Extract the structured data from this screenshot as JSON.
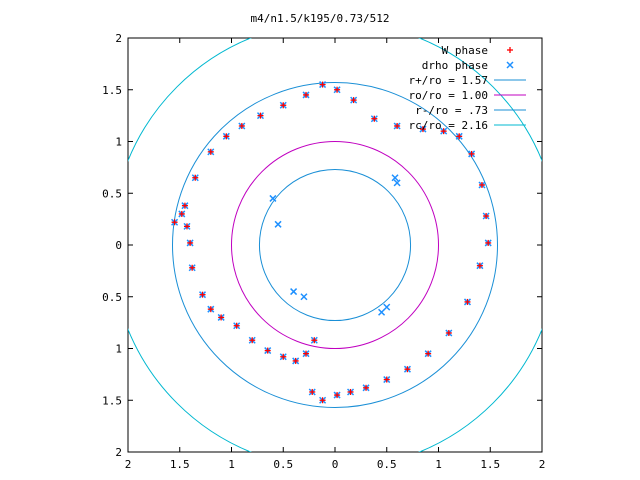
{
  "chart_data": {
    "type": "scatter",
    "title": "m4/n1.5/k195/0.73/512",
    "xlim": [
      -2,
      2
    ],
    "ylim": [
      -2,
      2
    ],
    "x_ticks": [
      -2,
      -1.5,
      -1,
      -0.5,
      0,
      0.5,
      1,
      1.5,
      2
    ],
    "y_ticks": [
      -2,
      -1.5,
      -1,
      -0.5,
      0,
      0.5,
      1,
      1.5,
      2
    ],
    "x_tick_labels": [
      "2",
      "1.5",
      "1",
      "0.5",
      "0",
      "0.5",
      "1",
      "1.5",
      "2"
    ],
    "y_tick_labels": [
      "2",
      "1.5",
      "1",
      "0.5",
      "0",
      "0.5",
      "1",
      "1.5",
      "2"
    ],
    "grid": false,
    "legend_position": "top-right",
    "colors": {
      "w_phase": "#ff0000",
      "drho_phase": "#1e90ff",
      "r_plus": "#1a8fd6",
      "r_o": "#c000c0",
      "r_minus": "#1a8fd6",
      "r_c": "#00b8d0",
      "extra_red": "#cc0033",
      "extra_purple": "#993399"
    },
    "series": [
      {
        "name": "W phase",
        "marker": "plus",
        "points": [
          [
            -1.55,
            0.22
          ],
          [
            -1.45,
            0.38
          ],
          [
            -1.43,
            0.18
          ],
          [
            -1.4,
            0.02
          ],
          [
            -1.38,
            -0.22
          ],
          [
            -1.28,
            -0.48
          ],
          [
            -1.2,
            -0.62
          ],
          [
            -1.1,
            -0.7
          ],
          [
            -0.95,
            -0.78
          ],
          [
            -0.8,
            -0.92
          ],
          [
            -0.65,
            -1.02
          ],
          [
            -0.5,
            -1.08
          ],
          [
            -0.38,
            -1.12
          ],
          [
            -0.28,
            -1.05
          ],
          [
            -0.2,
            -0.92
          ],
          [
            -0.22,
            -1.42
          ],
          [
            -0.12,
            -1.5
          ],
          [
            0.02,
            -1.45
          ],
          [
            0.15,
            -1.42
          ],
          [
            0.3,
            -1.38
          ],
          [
            0.5,
            -1.3
          ],
          [
            0.7,
            -1.2
          ],
          [
            0.9,
            -1.05
          ],
          [
            1.1,
            -0.85
          ],
          [
            1.28,
            -0.55
          ],
          [
            1.4,
            -0.2
          ],
          [
            1.48,
            0.02
          ],
          [
            1.46,
            0.28
          ],
          [
            1.42,
            0.58
          ],
          [
            1.32,
            0.88
          ],
          [
            1.2,
            1.05
          ],
          [
            1.05,
            1.1
          ],
          [
            0.85,
            1.12
          ],
          [
            0.6,
            1.15
          ],
          [
            0.38,
            1.22
          ],
          [
            0.18,
            1.4
          ],
          [
            0.02,
            1.5
          ],
          [
            -0.12,
            1.55
          ],
          [
            -0.28,
            1.45
          ],
          [
            -0.5,
            1.35
          ],
          [
            -0.72,
            1.25
          ],
          [
            -0.9,
            1.15
          ],
          [
            -1.05,
            1.05
          ],
          [
            -1.2,
            0.9
          ],
          [
            -1.35,
            0.65
          ],
          [
            -1.48,
            0.3
          ]
        ]
      },
      {
        "name": "drho phase",
        "marker": "cross",
        "points": [
          [
            -1.55,
            0.22
          ],
          [
            -1.45,
            0.38
          ],
          [
            -1.43,
            0.18
          ],
          [
            -1.4,
            0.02
          ],
          [
            -1.38,
            -0.22
          ],
          [
            -1.28,
            -0.48
          ],
          [
            -1.2,
            -0.62
          ],
          [
            -1.1,
            -0.7
          ],
          [
            -0.95,
            -0.78
          ],
          [
            -0.8,
            -0.92
          ],
          [
            -0.65,
            -1.02
          ],
          [
            -0.5,
            -1.08
          ],
          [
            -0.38,
            -1.12
          ],
          [
            -0.28,
            -1.05
          ],
          [
            -0.2,
            -0.92
          ],
          [
            -0.22,
            -1.42
          ],
          [
            -0.12,
            -1.5
          ],
          [
            0.02,
            -1.45
          ],
          [
            0.15,
            -1.42
          ],
          [
            0.3,
            -1.38
          ],
          [
            0.5,
            -1.3
          ],
          [
            0.7,
            -1.2
          ],
          [
            0.9,
            -1.05
          ],
          [
            1.1,
            -0.85
          ],
          [
            1.28,
            -0.55
          ],
          [
            1.4,
            -0.2
          ],
          [
            1.48,
            0.02
          ],
          [
            1.46,
            0.28
          ],
          [
            1.42,
            0.58
          ],
          [
            1.32,
            0.88
          ],
          [
            1.2,
            1.05
          ],
          [
            1.05,
            1.1
          ],
          [
            0.85,
            1.12
          ],
          [
            0.6,
            1.15
          ],
          [
            0.38,
            1.22
          ],
          [
            0.18,
            1.4
          ],
          [
            0.02,
            1.5
          ],
          [
            -0.12,
            1.55
          ],
          [
            -0.28,
            1.45
          ],
          [
            -0.5,
            1.35
          ],
          [
            -0.72,
            1.25
          ],
          [
            -0.9,
            1.15
          ],
          [
            -1.05,
            1.05
          ],
          [
            -1.2,
            0.9
          ],
          [
            -1.35,
            0.65
          ],
          [
            -1.48,
            0.3
          ],
          [
            -0.6,
            0.45
          ],
          [
            -0.55,
            0.2
          ],
          [
            -0.3,
            -0.5
          ],
          [
            -0.4,
            -0.45
          ],
          [
            0.5,
            -0.6
          ],
          [
            0.45,
            -0.65
          ],
          [
            0.6,
            0.6
          ],
          [
            0.58,
            0.65
          ]
        ]
      },
      {
        "name": "r+/ro = 1.57",
        "type": "circle",
        "radius": 1.57
      },
      {
        "name": "ro/ro = 1.00",
        "type": "circle",
        "radius": 1.0
      },
      {
        "name": "r-/ro = .73",
        "type": "circle",
        "radius": 0.73
      },
      {
        "name": "rc/ro = 2.16",
        "type": "circle",
        "radius": 2.16
      }
    ]
  }
}
